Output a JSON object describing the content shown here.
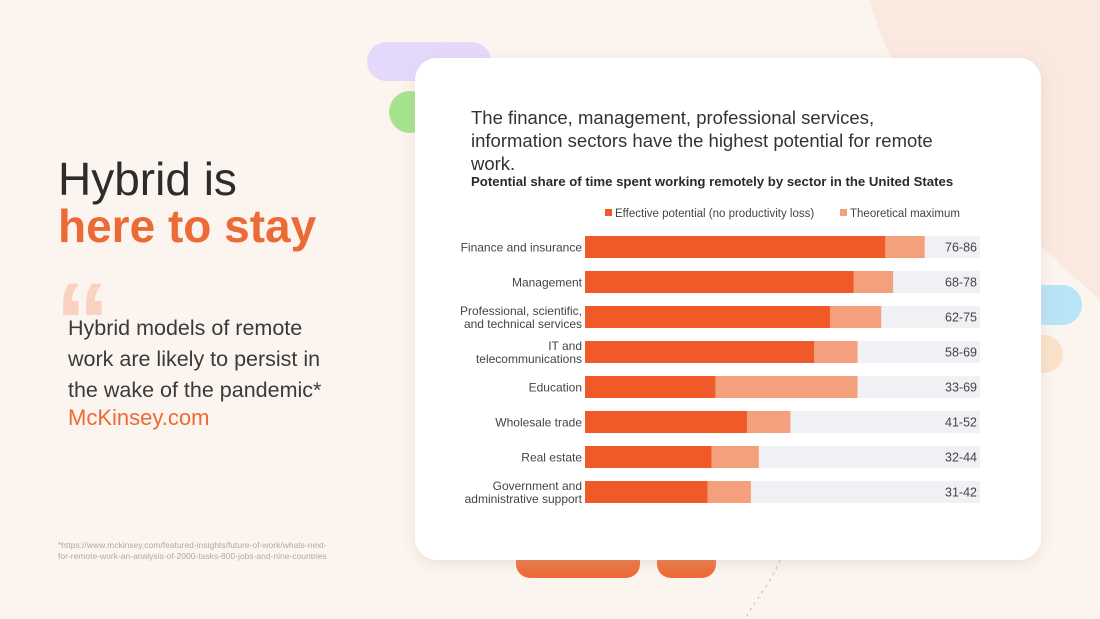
{
  "slide": {
    "heading_line1": "Hybrid is",
    "heading_line2": "here to stay",
    "quote_mark": "“",
    "quote_lines": [
      "Hybrid models of remote",
      "work are likely to persist in",
      "the wake of the pandemic*"
    ],
    "source": "McKinsey.com",
    "footnote_lines": [
      "*https://www.mckinsey.com/featured-insights/future-of-work/whats-next-",
      "for-remote-work-an-analysis-of-2000-tasks-800-jobs-and-nine-countries"
    ]
  },
  "chart_data": {
    "type": "bar",
    "orientation": "horizontal",
    "title": [
      "The finance, management, professional services,",
      "information sectors have the highest potential for remote",
      "work."
    ],
    "subtitle": "Potential share of time spent working remotely by sector in the United States",
    "categories": [
      [
        "Finance and insurance"
      ],
      [
        "Management"
      ],
      [
        "Professional, scientific,",
        "and technical services"
      ],
      [
        "IT and",
        "telecommunications"
      ],
      [
        "Education"
      ],
      [
        "Wholesale trade"
      ],
      [
        "Real estate"
      ],
      [
        "Government and",
        "administrative support"
      ]
    ],
    "series": [
      {
        "name": "Effective potential (no productivity loss)",
        "color": "#f05a28",
        "values": [
          76,
          68,
          62,
          58,
          33,
          41,
          32,
          31
        ]
      },
      {
        "name": "Theoretical maximum",
        "color": "#f4a07c",
        "values": [
          86,
          78,
          75,
          69,
          69,
          52,
          44,
          42
        ]
      }
    ],
    "value_labels": [
      "76-86",
      "68-78",
      "62-75",
      "58-69",
      "33-69",
      "41-52",
      "32-44",
      "31-42"
    ],
    "xlim": [
      0,
      100
    ],
    "track_color": "#f1f1f5"
  }
}
